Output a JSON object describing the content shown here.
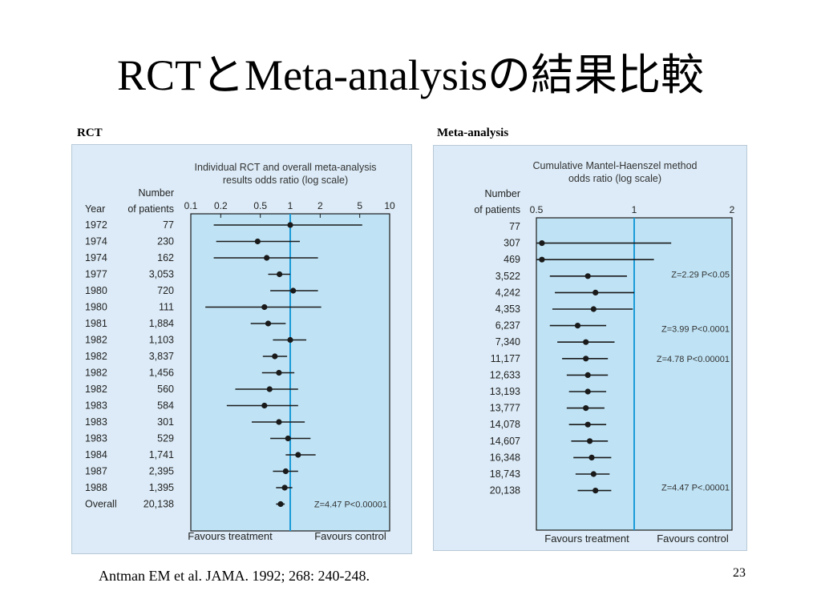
{
  "slide": {
    "title": "RCTとMeta-analysisの結果比較",
    "rct_label": "RCT",
    "meta_label": "Meta-analysis",
    "citation": "Antman EM et al.  JAMA. 1992; 268: 240-248.",
    "page_number": "23"
  },
  "colors": {
    "panel_bg": "#dcebf7",
    "plot_bg": "#bfe3f5",
    "reference_line": "#1a9ad8",
    "marks": "#1a1a1a"
  },
  "chart_data": [
    {
      "type": "forest",
      "title": "Individual RCT and overall meta-analysis results odds ratio (log scale)",
      "title_lines": [
        "Individual RCT and overall meta-analysis",
        "results odds ratio (log scale)"
      ],
      "col_year_header": "Year",
      "col_n_header_lines": [
        "Number",
        "of patients"
      ],
      "x_scale": "log",
      "xlim": [
        0.1,
        10
      ],
      "x_ticks": [
        0.1,
        0.2,
        0.5,
        1,
        2,
        5,
        10
      ],
      "x_tick_labels": [
        "0.1",
        "0.2",
        "0.5",
        "1",
        "2",
        "5",
        "10"
      ],
      "reference_value": 1,
      "xlabel_left": "Favours treatment",
      "xlabel_right": "Favours control",
      "rows": [
        {
          "year": "1972",
          "n": "77",
          "or": 1.0,
          "lo": 0.17,
          "hi": 5.3
        },
        {
          "year": "1974",
          "n": "230",
          "or": 0.47,
          "lo": 0.18,
          "hi": 1.25
        },
        {
          "year": "1974",
          "n": "162",
          "or": 0.58,
          "lo": 0.17,
          "hi": 1.9
        },
        {
          "year": "1977",
          "n": "3,053",
          "or": 0.78,
          "lo": 0.6,
          "hi": 1.0
        },
        {
          "year": "1980",
          "n": "720",
          "or": 1.07,
          "lo": 0.63,
          "hi": 1.9
        },
        {
          "year": "1980",
          "n": "111",
          "or": 0.55,
          "lo": 0.14,
          "hi": 2.05
        },
        {
          "year": "1981",
          "n": "1,884",
          "or": 0.6,
          "lo": 0.4,
          "hi": 0.9
        },
        {
          "year": "1982",
          "n": "1,103",
          "or": 1.0,
          "lo": 0.67,
          "hi": 1.45
        },
        {
          "year": "1982",
          "n": "3,837",
          "or": 0.7,
          "lo": 0.53,
          "hi": 0.93
        },
        {
          "year": "1982",
          "n": "1,456",
          "or": 0.77,
          "lo": 0.52,
          "hi": 1.1
        },
        {
          "year": "1982",
          "n": "560",
          "or": 0.62,
          "lo": 0.28,
          "hi": 1.2
        },
        {
          "year": "1983",
          "n": "584",
          "or": 0.55,
          "lo": 0.23,
          "hi": 1.2
        },
        {
          "year": "1983",
          "n": "301",
          "or": 0.77,
          "lo": 0.41,
          "hi": 1.4
        },
        {
          "year": "1983",
          "n": "529",
          "or": 0.95,
          "lo": 0.63,
          "hi": 1.6
        },
        {
          "year": "1984",
          "n": "1,741",
          "or": 1.2,
          "lo": 0.9,
          "hi": 1.8
        },
        {
          "year": "1987",
          "n": "2,395",
          "or": 0.9,
          "lo": 0.67,
          "hi": 1.2
        },
        {
          "year": "1988",
          "n": "1,395",
          "or": 0.88,
          "lo": 0.72,
          "hi": 1.05
        },
        {
          "year": "Overall",
          "n": "20,138",
          "or": 0.8,
          "lo": 0.72,
          "hi": 0.88
        }
      ],
      "annotations": [
        {
          "text": "Z=4.47 P<0.00001",
          "row": 17
        }
      ]
    },
    {
      "type": "forest",
      "title": "Cumulative Mantel-Haenszel method odds ratio (log scale)",
      "title_lines": [
        "Cumulative Mantel-Haenszel method",
        "odds ratio (log scale)"
      ],
      "col_n_header_lines": [
        "Number",
        "of patients"
      ],
      "x_scale": "log",
      "xlim": [
        0.5,
        2
      ],
      "x_ticks": [
        0.5,
        1,
        2
      ],
      "x_tick_labels": [
        "0.5",
        "1",
        "2"
      ],
      "reference_value": 1,
      "xlabel_left": "Favours treatment",
      "xlabel_right": "Favours control",
      "rows": [
        {
          "n": "77",
          "or": null,
          "lo": null,
          "hi": null
        },
        {
          "n": "307",
          "or": 0.52,
          "lo": 0.5,
          "hi": 1.3
        },
        {
          "n": "469",
          "or": 0.52,
          "lo": 0.5,
          "hi": 1.15
        },
        {
          "n": "3,522",
          "or": 0.72,
          "lo": 0.55,
          "hi": 0.95
        },
        {
          "n": "4,242",
          "or": 0.76,
          "lo": 0.57,
          "hi": 1.0
        },
        {
          "n": "4,353",
          "or": 0.75,
          "lo": 0.56,
          "hi": 0.99
        },
        {
          "n": "6,237",
          "or": 0.67,
          "lo": 0.55,
          "hi": 0.82
        },
        {
          "n": "7,340",
          "or": 0.71,
          "lo": 0.58,
          "hi": 0.87
        },
        {
          "n": "11,177",
          "or": 0.71,
          "lo": 0.6,
          "hi": 0.83
        },
        {
          "n": "12,633",
          "or": 0.72,
          "lo": 0.62,
          "hi": 0.83
        },
        {
          "n": "13,193",
          "or": 0.72,
          "lo": 0.63,
          "hi": 0.82
        },
        {
          "n": "13,777",
          "or": 0.71,
          "lo": 0.62,
          "hi": 0.81
        },
        {
          "n": "14,078",
          "or": 0.72,
          "lo": 0.63,
          "hi": 0.82
        },
        {
          "n": "14,607",
          "or": 0.73,
          "lo": 0.64,
          "hi": 0.83
        },
        {
          "n": "16,348",
          "or": 0.74,
          "lo": 0.65,
          "hi": 0.85
        },
        {
          "n": "18,743",
          "or": 0.75,
          "lo": 0.66,
          "hi": 0.84
        },
        {
          "n": "20,138",
          "or": 0.76,
          "lo": 0.67,
          "hi": 0.85
        }
      ],
      "annotations": [
        {
          "text": "Z=2.29 P<0.05",
          "row": 2.9
        },
        {
          "text": "Z=3.99 P<0.0001",
          "row": 6.2
        },
        {
          "text": "Z=4.78 P<0.00001",
          "row": 8
        },
        {
          "text": "Z=4.47 P<.00001",
          "row": 15.8
        }
      ]
    }
  ]
}
